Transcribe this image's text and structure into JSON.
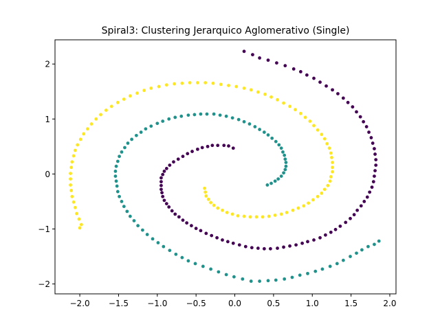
{
  "chart_data": {
    "type": "scatter",
    "title": "Spiral3: Clustering Jerarquico Aglomerativo (Single)",
    "xlabel": "",
    "ylabel": "",
    "xlim": [
      -2.32,
      2.08
    ],
    "ylim": [
      -2.18,
      2.44
    ],
    "xticks": [
      -2.0,
      -1.5,
      -1.0,
      -0.5,
      0.0,
      0.5,
      1.0,
      1.5,
      2.0
    ],
    "xtick_labels": [
      "−2.0",
      "−1.5",
      "−1.0",
      "−0.5",
      "0.0",
      "0.5",
      "1.0",
      "1.5",
      "2.0"
    ],
    "yticks": [
      -2,
      -1,
      0,
      1,
      2
    ],
    "ytick_labels": [
      "−2",
      "−1",
      "0",
      "1",
      "2"
    ],
    "grid": false,
    "legend": "none",
    "colors": {
      "purple": "#440154",
      "teal": "#21918c",
      "yellow": "#fde725"
    },
    "series": [
      {
        "color": "#440154",
        "points": [
          [
            -0.02,
            0.47
          ],
          [
            -0.08,
            0.51
          ],
          [
            -0.14,
            0.52
          ],
          [
            -0.22,
            0.52
          ],
          [
            -0.29,
            0.52
          ],
          [
            -0.35,
            0.5
          ],
          [
            -0.42,
            0.48
          ],
          [
            -0.48,
            0.45
          ],
          [
            -0.55,
            0.41
          ],
          [
            -0.61,
            0.37
          ],
          [
            -0.67,
            0.32
          ],
          [
            -0.73,
            0.27
          ],
          [
            -0.79,
            0.22
          ],
          [
            -0.84,
            0.16
          ],
          [
            -0.88,
            0.1
          ],
          [
            -0.91,
            0.05
          ],
          [
            -0.93,
            -0.01
          ],
          [
            -0.95,
            -0.07
          ],
          [
            -0.95,
            -0.14
          ],
          [
            -0.95,
            -0.21
          ],
          [
            -0.95,
            -0.28
          ],
          [
            -0.94,
            -0.34
          ],
          [
            -0.93,
            -0.41
          ],
          [
            -0.91,
            -0.48
          ],
          [
            -0.88,
            -0.54
          ],
          [
            -0.85,
            -0.6
          ],
          [
            -0.81,
            -0.67
          ],
          [
            -0.77,
            -0.73
          ],
          [
            -0.72,
            -0.78
          ],
          [
            -0.67,
            -0.84
          ],
          [
            -0.62,
            -0.89
          ],
          [
            -0.56,
            -0.94
          ],
          [
            -0.5,
            -0.99
          ],
          [
            -0.44,
            -1.03
          ],
          [
            -0.37,
            -1.08
          ],
          [
            -0.3,
            -1.12
          ],
          [
            -0.23,
            -1.16
          ],
          [
            -0.16,
            -1.2
          ],
          [
            -0.09,
            -1.23
          ],
          [
            -0.02,
            -1.26
          ],
          [
            0.06,
            -1.29
          ],
          [
            0.14,
            -1.32
          ],
          [
            0.22,
            -1.34
          ],
          [
            0.3,
            -1.35
          ],
          [
            0.38,
            -1.36
          ],
          [
            0.46,
            -1.36
          ],
          [
            0.55,
            -1.35
          ],
          [
            0.63,
            -1.33
          ],
          [
            0.71,
            -1.31
          ],
          [
            0.79,
            -1.29
          ],
          [
            0.87,
            -1.26
          ],
          [
            0.94,
            -1.23
          ],
          [
            1.02,
            -1.2
          ],
          [
            1.1,
            -1.16
          ],
          [
            1.17,
            -1.11
          ],
          [
            1.24,
            -1.06
          ],
          [
            1.3,
            -1.01
          ],
          [
            1.36,
            -0.95
          ],
          [
            1.43,
            -0.88
          ],
          [
            1.49,
            -0.81
          ],
          [
            1.54,
            -0.74
          ],
          [
            1.58,
            -0.66
          ],
          [
            1.63,
            -0.58
          ],
          [
            1.67,
            -0.5
          ],
          [
            1.71,
            -0.42
          ],
          [
            1.74,
            -0.33
          ],
          [
            1.77,
            -0.24
          ],
          [
            1.79,
            -0.14
          ],
          [
            1.8,
            -0.04
          ],
          [
            1.81,
            0.06
          ],
          [
            1.82,
            0.16
          ],
          [
            1.82,
            0.26
          ],
          [
            1.81,
            0.36
          ],
          [
            1.8,
            0.46
          ],
          [
            1.78,
            0.56
          ],
          [
            1.76,
            0.66
          ],
          [
            1.73,
            0.76
          ],
          [
            1.7,
            0.86
          ],
          [
            1.66,
            0.95
          ],
          [
            1.62,
            1.04
          ],
          [
            1.57,
            1.13
          ],
          [
            1.52,
            1.22
          ],
          [
            1.46,
            1.3
          ],
          [
            1.4,
            1.38
          ],
          [
            1.33,
            1.46
          ],
          [
            1.26,
            1.53
          ],
          [
            1.18,
            1.6
          ],
          [
            1.1,
            1.67
          ],
          [
            1.02,
            1.74
          ],
          [
            0.93,
            1.8
          ],
          [
            0.85,
            1.86
          ],
          [
            0.76,
            1.91
          ],
          [
            0.65,
            1.97
          ],
          [
            0.54,
            2.02
          ],
          [
            0.43,
            2.07
          ],
          [
            0.32,
            2.11
          ],
          [
            0.23,
            2.17
          ],
          [
            0.12,
            2.23
          ]
        ]
      },
      {
        "color": "#21918c",
        "points": [
          [
            0.42,
            -0.2
          ],
          [
            0.47,
            -0.17
          ],
          [
            0.52,
            -0.13
          ],
          [
            0.56,
            -0.09
          ],
          [
            0.6,
            -0.04
          ],
          [
            0.63,
            0.02
          ],
          [
            0.65,
            0.08
          ],
          [
            0.66,
            0.14
          ],
          [
            0.66,
            0.21
          ],
          [
            0.65,
            0.27
          ],
          [
            0.64,
            0.34
          ],
          [
            0.62,
            0.4
          ],
          [
            0.6,
            0.47
          ],
          [
            0.57,
            0.53
          ],
          [
            0.53,
            0.59
          ],
          [
            0.48,
            0.65
          ],
          [
            0.43,
            0.71
          ],
          [
            0.38,
            0.76
          ],
          [
            0.32,
            0.81
          ],
          [
            0.26,
            0.86
          ],
          [
            0.19,
            0.91
          ],
          [
            0.12,
            0.95
          ],
          [
            0.05,
            0.99
          ],
          [
            -0.03,
            1.02
          ],
          [
            -0.11,
            1.05
          ],
          [
            -0.19,
            1.07
          ],
          [
            -0.27,
            1.09
          ],
          [
            -0.36,
            1.09
          ],
          [
            -0.44,
            1.09
          ],
          [
            -0.52,
            1.08
          ],
          [
            -0.6,
            1.07
          ],
          [
            -0.69,
            1.05
          ],
          [
            -0.77,
            1.03
          ],
          [
            -0.85,
            1.0
          ],
          [
            -0.93,
            0.96
          ],
          [
            -1.0,
            0.92
          ],
          [
            -1.08,
            0.87
          ],
          [
            -1.15,
            0.82
          ],
          [
            -1.21,
            0.76
          ],
          [
            -1.27,
            0.7
          ],
          [
            -1.33,
            0.63
          ],
          [
            -1.38,
            0.56
          ],
          [
            -1.42,
            0.48
          ],
          [
            -1.46,
            0.4
          ],
          [
            -1.49,
            0.32
          ],
          [
            -1.51,
            0.23
          ],
          [
            -1.53,
            0.14
          ],
          [
            -1.54,
            0.05
          ],
          [
            -1.54,
            -0.04
          ],
          [
            -1.53,
            -0.13
          ],
          [
            -1.52,
            -0.22
          ],
          [
            -1.51,
            -0.32
          ],
          [
            -1.49,
            -0.41
          ],
          [
            -1.46,
            -0.5
          ],
          [
            -1.43,
            -0.59
          ],
          [
            -1.39,
            -0.68
          ],
          [
            -1.35,
            -0.77
          ],
          [
            -1.3,
            -0.85
          ],
          [
            -1.25,
            -0.94
          ],
          [
            -1.19,
            -1.02
          ],
          [
            -1.13,
            -1.1
          ],
          [
            -1.06,
            -1.18
          ],
          [
            -0.99,
            -1.25
          ],
          [
            -0.92,
            -1.32
          ],
          [
            -0.84,
            -1.39
          ],
          [
            -0.76,
            -1.46
          ],
          [
            -0.68,
            -1.52
          ],
          [
            -0.6,
            -1.58
          ],
          [
            -0.51,
            -1.63
          ],
          [
            -0.41,
            -1.68
          ],
          [
            -0.31,
            -1.73
          ],
          [
            -0.21,
            -1.78
          ],
          [
            -0.11,
            -1.83
          ],
          [
            -0.01,
            -1.87
          ],
          [
            0.1,
            -1.91
          ],
          [
            0.21,
            -1.95
          ],
          [
            0.32,
            -1.95
          ],
          [
            0.43,
            -1.94
          ],
          [
            0.53,
            -1.93
          ],
          [
            0.64,
            -1.91
          ],
          [
            0.74,
            -1.88
          ],
          [
            0.84,
            -1.84
          ],
          [
            0.94,
            -1.81
          ],
          [
            1.04,
            -1.77
          ],
          [
            1.13,
            -1.73
          ],
          [
            1.23,
            -1.68
          ],
          [
            1.32,
            -1.63
          ],
          [
            1.4,
            -1.57
          ],
          [
            1.49,
            -1.5
          ],
          [
            1.57,
            -1.44
          ],
          [
            1.64,
            -1.38
          ],
          [
            1.72,
            -1.32
          ],
          [
            1.8,
            -1.28
          ],
          [
            1.86,
            -1.22
          ]
        ]
      },
      {
        "color": "#fde725",
        "points": [
          [
            -0.39,
            -0.26
          ],
          [
            -0.38,
            -0.33
          ],
          [
            -0.37,
            -0.4
          ],
          [
            -0.34,
            -0.46
          ],
          [
            -0.31,
            -0.52
          ],
          [
            -0.27,
            -0.57
          ],
          [
            -0.22,
            -0.62
          ],
          [
            -0.16,
            -0.66
          ],
          [
            -0.1,
            -0.7
          ],
          [
            -0.03,
            -0.73
          ],
          [
            0.04,
            -0.76
          ],
          [
            0.12,
            -0.77
          ],
          [
            0.2,
            -0.78
          ],
          [
            0.28,
            -0.78
          ],
          [
            0.36,
            -0.78
          ],
          [
            0.44,
            -0.77
          ],
          [
            0.52,
            -0.75
          ],
          [
            0.6,
            -0.73
          ],
          [
            0.67,
            -0.7
          ],
          [
            0.75,
            -0.66
          ],
          [
            0.82,
            -0.62
          ],
          [
            0.89,
            -0.58
          ],
          [
            0.95,
            -0.53
          ],
          [
            1.01,
            -0.47
          ],
          [
            1.07,
            -0.41
          ],
          [
            1.12,
            -0.35
          ],
          [
            1.16,
            -0.28
          ],
          [
            1.2,
            -0.21
          ],
          [
            1.23,
            -0.13
          ],
          [
            1.24,
            -0.05
          ],
          [
            1.26,
            0.04
          ],
          [
            1.26,
            0.12
          ],
          [
            1.26,
            0.21
          ],
          [
            1.25,
            0.3
          ],
          [
            1.24,
            0.38
          ],
          [
            1.22,
            0.47
          ],
          [
            1.19,
            0.55
          ],
          [
            1.16,
            0.64
          ],
          [
            1.12,
            0.72
          ],
          [
            1.07,
            0.8
          ],
          [
            1.02,
            0.88
          ],
          [
            0.97,
            0.96
          ],
          [
            0.91,
            1.03
          ],
          [
            0.85,
            1.1
          ],
          [
            0.78,
            1.17
          ],
          [
            0.71,
            1.23
          ],
          [
            0.63,
            1.29
          ],
          [
            0.55,
            1.35
          ],
          [
            0.47,
            1.4
          ],
          [
            0.39,
            1.45
          ],
          [
            0.3,
            1.49
          ],
          [
            0.21,
            1.53
          ],
          [
            0.12,
            1.56
          ],
          [
            0.02,
            1.59
          ],
          [
            -0.08,
            1.61
          ],
          [
            -0.18,
            1.63
          ],
          [
            -0.28,
            1.65
          ],
          [
            -0.38,
            1.66
          ],
          [
            -0.48,
            1.66
          ],
          [
            -0.58,
            1.66
          ],
          [
            -0.68,
            1.65
          ],
          [
            -0.78,
            1.64
          ],
          [
            -0.88,
            1.62
          ],
          [
            -0.98,
            1.59
          ],
          [
            -1.08,
            1.56
          ],
          [
            -1.17,
            1.52
          ],
          [
            -1.26,
            1.47
          ],
          [
            -1.35,
            1.42
          ],
          [
            -1.43,
            1.36
          ],
          [
            -1.51,
            1.3
          ],
          [
            -1.59,
            1.23
          ],
          [
            -1.66,
            1.16
          ],
          [
            -1.73,
            1.08
          ],
          [
            -1.79,
            1.0
          ],
          [
            -1.85,
            0.91
          ],
          [
            -1.9,
            0.82
          ],
          [
            -1.95,
            0.73
          ],
          [
            -1.99,
            0.63
          ],
          [
            -2.03,
            0.53
          ],
          [
            -2.06,
            0.43
          ],
          [
            -2.08,
            0.33
          ],
          [
            -2.1,
            0.22
          ],
          [
            -2.11,
            0.12
          ],
          [
            -2.12,
            0.01
          ],
          [
            -2.12,
            -0.09
          ],
          [
            -2.12,
            -0.2
          ],
          [
            -2.11,
            -0.3
          ],
          [
            -2.1,
            -0.41
          ],
          [
            -2.08,
            -0.51
          ],
          [
            -2.06,
            -0.61
          ],
          [
            -2.04,
            -0.72
          ],
          [
            -2.01,
            -0.82
          ],
          [
            -1.98,
            -0.92
          ],
          [
            -2.0,
            -0.98
          ]
        ]
      }
    ]
  }
}
